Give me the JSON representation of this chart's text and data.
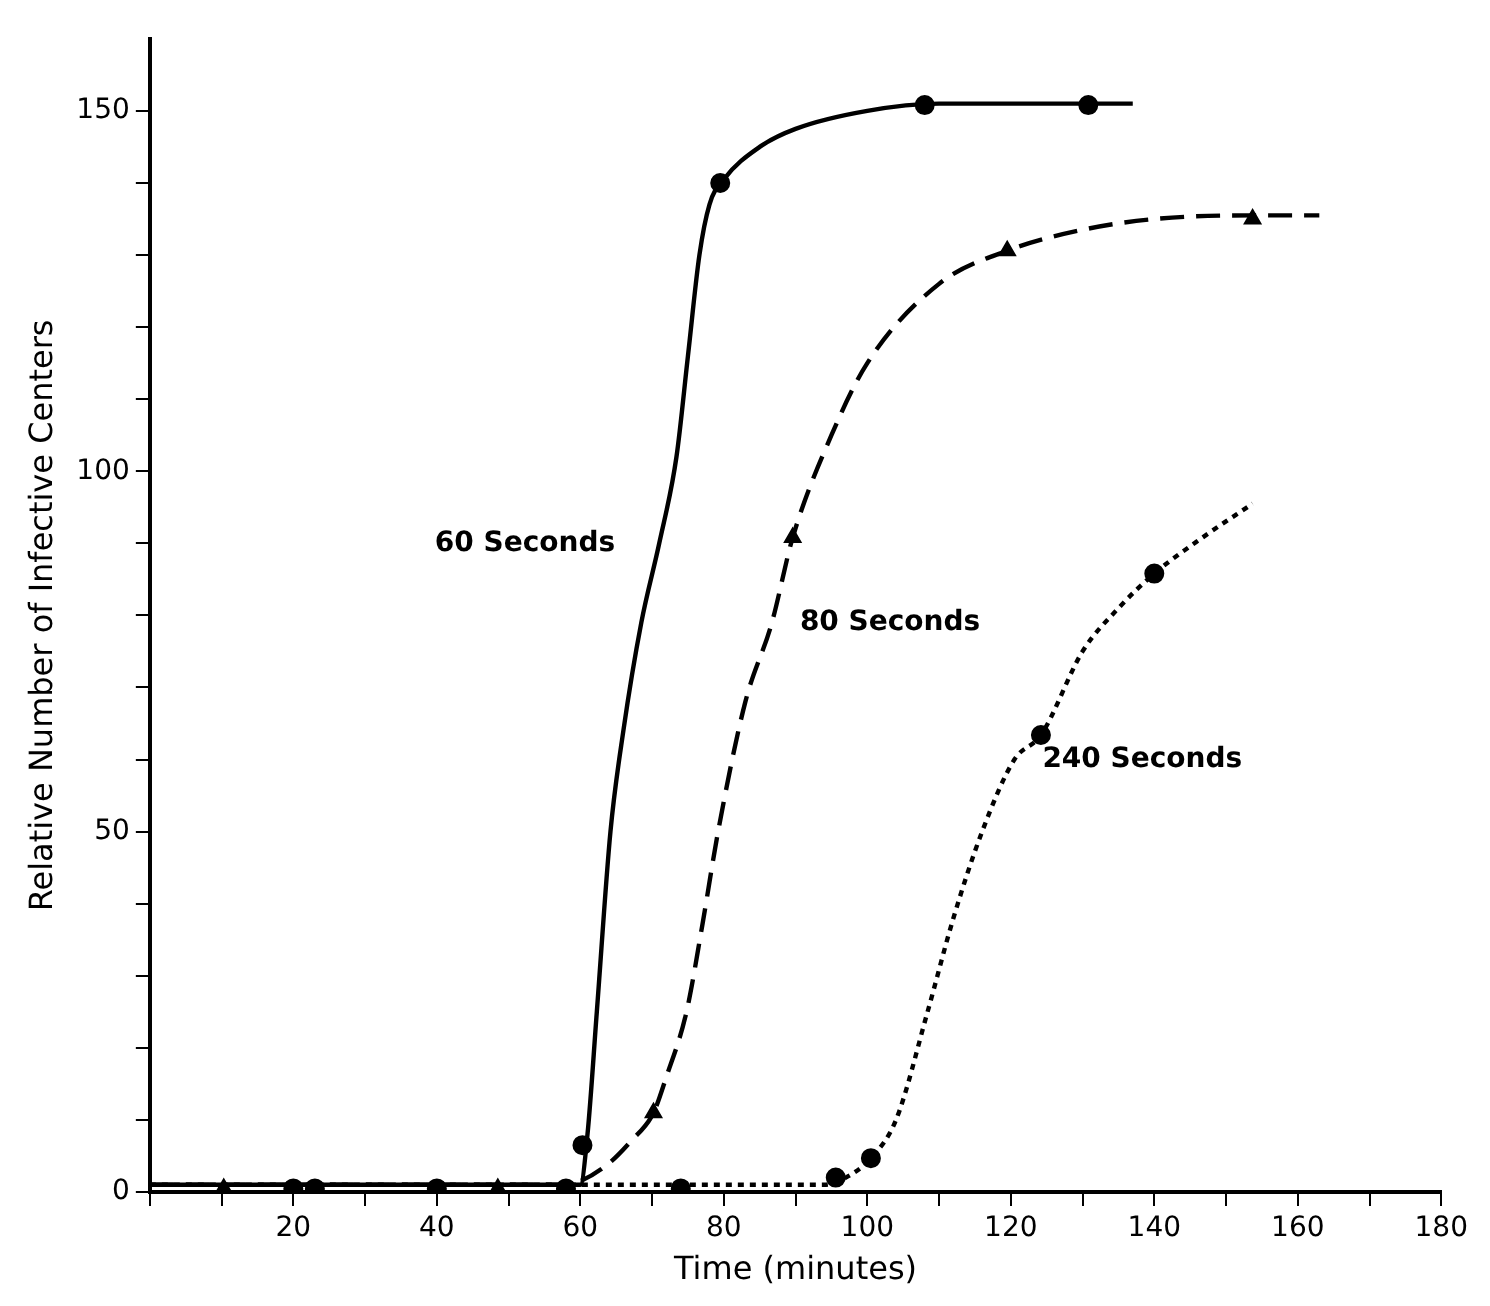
{
  "chart_data": {
    "type": "line",
    "xlabel": "Time (minutes)",
    "ylabel": "Relative Number of Infective Centers",
    "xlim": [
      0,
      180
    ],
    "ylim": [
      0,
      160
    ],
    "xticks": [
      {
        "value": 0,
        "label": null
      },
      {
        "value": 10,
        "label": null
      },
      20,
      {
        "value": 30,
        "label": null
      },
      40,
      {
        "value": 50,
        "label": null
      },
      60,
      {
        "value": 70,
        "label": null
      },
      80,
      {
        "value": 90,
        "label": null
      },
      100,
      {
        "value": 110,
        "label": null
      },
      120,
      {
        "value": 130,
        "label": null
      },
      140,
      {
        "value": 150,
        "label": null
      },
      160,
      {
        "value": 170,
        "label": null
      },
      180
    ],
    "yticks": [
      0,
      {
        "value": 10,
        "label": null
      },
      {
        "value": 20,
        "label": null
      },
      {
        "value": 30,
        "label": null
      },
      {
        "value": 40,
        "label": null
      },
      50,
      {
        "value": 60,
        "label": null
      },
      {
        "value": 70,
        "label": null
      },
      {
        "value": 80,
        "label": null
      },
      {
        "value": 90,
        "label": null
      },
      100,
      {
        "value": 110,
        "label": null
      },
      {
        "value": 120,
        "label": null
      },
      {
        "value": 130,
        "label": null
      },
      {
        "value": 140,
        "label": null
      },
      150
    ],
    "grid": false,
    "legend": false,
    "series": [
      {
        "name": "60 Seconds",
        "color": "#000000",
        "line_style": "solid",
        "marker": "none",
        "x": [
          0,
          58,
          60,
          61,
          62.3,
          64.2,
          66,
          68.5,
          71,
          73.4,
          75,
          76.6,
          78,
          80,
          85,
          90,
          100,
          110,
          120,
          137
        ],
        "values": [
          1,
          1,
          1,
          8,
          25,
          50,
          64,
          79,
          90,
          102,
          116,
          130,
          137,
          140.5,
          145,
          147.5,
          150,
          151,
          151,
          151
        ]
      },
      {
        "type": "scatter",
        "color": "#000000",
        "marker": "circle",
        "x": [
          23,
          40,
          58,
          60.3,
          79.5,
          108,
          130.8
        ],
        "values": [
          0.5,
          0.5,
          0.5,
          6.5,
          140,
          150.8,
          150.8
        ]
      },
      {
        "name": "80 Seconds",
        "color": "#000000",
        "line_style": "dashed",
        "marker": "none",
        "x": [
          0,
          58,
          60,
          64,
          67,
          70.2,
          72,
          74.8,
          77,
          79.2,
          83,
          86.7,
          89.6,
          95,
          100,
          110,
          119.5,
          130,
          140,
          153.7,
          163
        ],
        "values": [
          1,
          1,
          1.5,
          4,
          7,
          11,
          16,
          25,
          37,
          50,
          68,
          79,
          90.8,
          105,
          115,
          126,
          130.6,
          133.5,
          135,
          135.5,
          135.5
        ]
      },
      {
        "type": "scatter",
        "color": "#000000",
        "marker": "triangle",
        "x": [
          10.3,
          48.5,
          70.2,
          89.6,
          119.5,
          153.7
        ],
        "values": [
          0.5,
          0.5,
          11,
          90.8,
          130.6,
          135
        ]
      },
      {
        "name": "240 Seconds",
        "color": "#000000",
        "line_style": "dotted",
        "marker": "none",
        "x": [
          0,
          94,
          97,
          100.5,
          104,
          108.4,
          112,
          116,
          120.5,
          124.2,
          130,
          135,
          140,
          147,
          153.7
        ],
        "values": [
          1,
          1,
          2,
          4.7,
          10,
          25,
          38,
          50,
          60,
          63.4,
          75,
          81,
          85.8,
          91,
          95.5
        ]
      },
      {
        "type": "scatter",
        "color": "#000000",
        "marker": "circle",
        "x": [
          20,
          74,
          95.6,
          100.5,
          124.2,
          140
        ],
        "values": [
          0.5,
          0.5,
          2,
          4.7,
          63.4,
          85.8
        ]
      }
    ]
  }
}
